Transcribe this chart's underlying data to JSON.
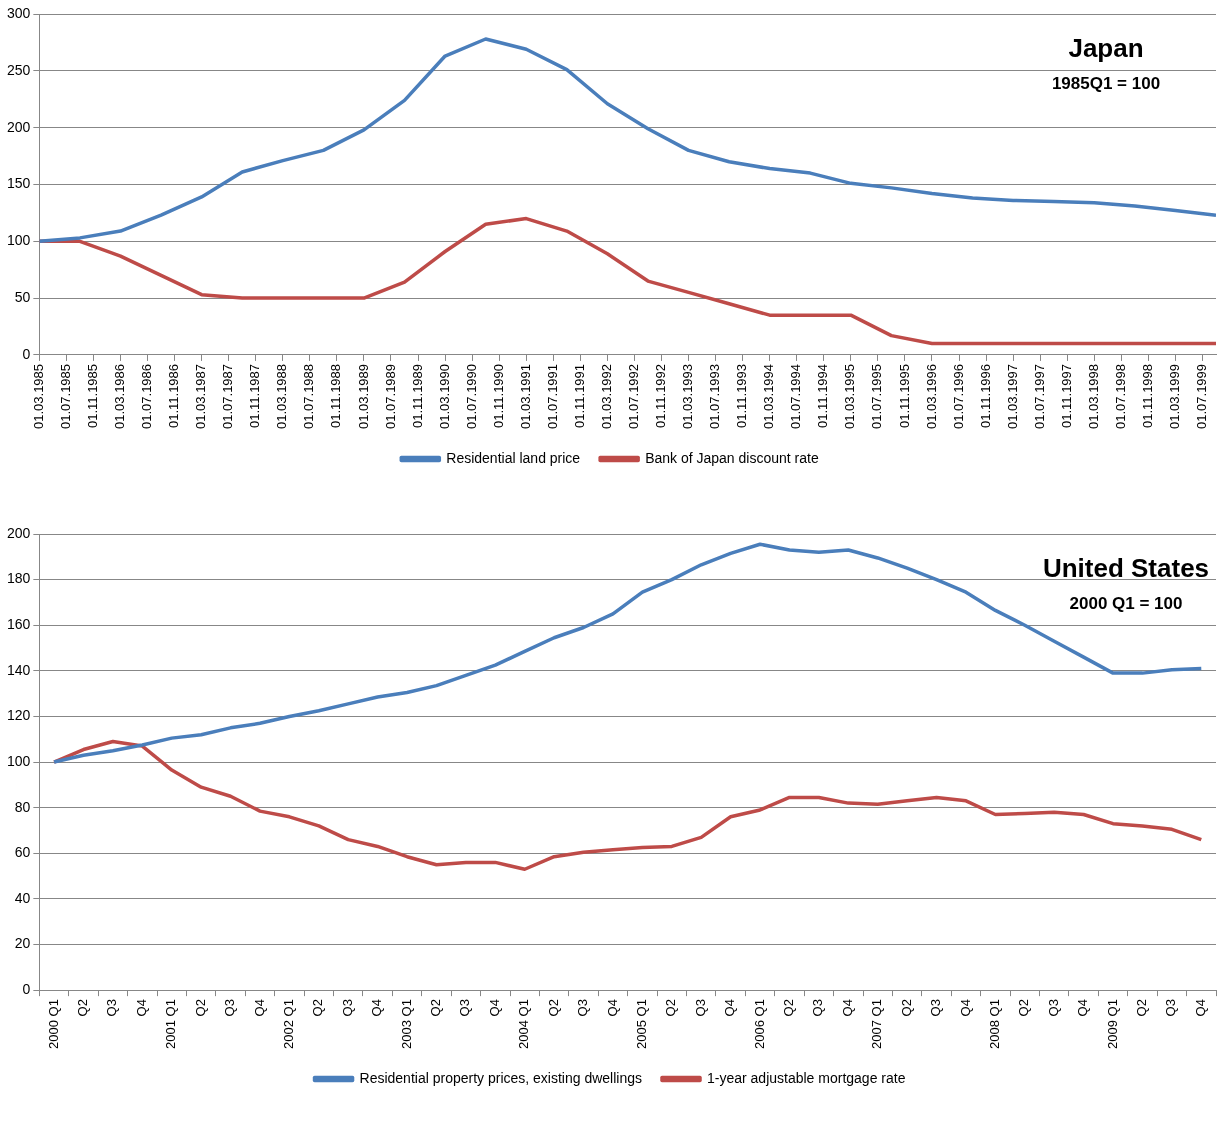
{
  "chart_data": [
    {
      "type": "line",
      "title": "Japan",
      "subtitle": "1985Q1 = 100",
      "x": [
        "1985-03",
        "1985-09",
        "1986-03",
        "1986-09",
        "1987-03",
        "1987-09",
        "1988-03",
        "1988-09",
        "1989-03",
        "1989-09",
        "1990-03",
        "1990-09",
        "1991-03",
        "1991-09",
        "1992-03",
        "1992-09",
        "1993-03",
        "1993-09",
        "1994-03",
        "1994-09",
        "1995-03",
        "1995-09",
        "1996-03",
        "1996-09",
        "1997-03",
        "1997-09",
        "1998-03",
        "1998-09",
        "1999-03",
        "1999-09"
      ],
      "series": [
        {
          "name": "Residential land price",
          "color": "#4a7ebb",
          "values": [
            100,
            103,
            109,
            123,
            139,
            161,
            171,
            180,
            198,
            224,
            263,
            278,
            269,
            251,
            221,
            199,
            180,
            170,
            164,
            160,
            151,
            147,
            142,
            138,
            136,
            135,
            134,
            131,
            127,
            123
          ]
        },
        {
          "name": "Bank of Japan discount rate",
          "color": "#be4b48",
          "values": [
            100,
            100,
            87,
            70,
            53,
            50,
            50,
            50,
            50,
            64,
            91,
            115,
            120,
            109,
            89,
            65,
            55,
            45,
            35,
            35,
            35,
            17,
            10,
            10,
            10,
            10,
            10,
            10,
            10,
            10
          ]
        }
      ],
      "xlim": [
        "1985-03",
        "1999-09"
      ],
      "xticks": [
        {
          "value": "1985-03",
          "label": "01.03.1985"
        },
        {
          "value": "1985-07",
          "label": "01.07.1985"
        },
        {
          "value": "1985-11",
          "label": "01.11.1985"
        },
        {
          "value": "1986-03",
          "label": "01.03.1986"
        },
        {
          "value": "1986-07",
          "label": "01.07.1986"
        },
        {
          "value": "1986-11",
          "label": "01.11.1986"
        },
        {
          "value": "1987-03",
          "label": "01.03.1987"
        },
        {
          "value": "1987-07",
          "label": "01.07.1987"
        },
        {
          "value": "1987-11",
          "label": "01.11.1987"
        },
        {
          "value": "1988-03",
          "label": "01.03.1988"
        },
        {
          "value": "1988-07",
          "label": "01.07.1988"
        },
        {
          "value": "1988-11",
          "label": "01.11.1988"
        },
        {
          "value": "1989-03",
          "label": "01.03.1989"
        },
        {
          "value": "1989-07",
          "label": "01.07.1989"
        },
        {
          "value": "1989-11",
          "label": "01.11.1989"
        },
        {
          "value": "1990-03",
          "label": "01.03.1990"
        },
        {
          "value": "1990-07",
          "label": "01.07.1990"
        },
        {
          "value": "1990-11",
          "label": "01.11.1990"
        },
        {
          "value": "1991-03",
          "label": "01.03.1991"
        },
        {
          "value": "1991-07",
          "label": "01.07.1991"
        },
        {
          "value": "1991-11",
          "label": "01.11.1991"
        },
        {
          "value": "1992-03",
          "label": "01.03.1992"
        },
        {
          "value": "1992-07",
          "label": "01.07.1992"
        },
        {
          "value": "1992-11",
          "label": "01.11.1992"
        },
        {
          "value": "1993-03",
          "label": "01.03.1993"
        },
        {
          "value": "1993-07",
          "label": "01.07.1993"
        },
        {
          "value": "1993-11",
          "label": "01.11.1993"
        },
        {
          "value": "1994-03",
          "label": "01.03.1994"
        },
        {
          "value": "1994-07",
          "label": "01.07.1994"
        },
        {
          "value": "1994-11",
          "label": "01.11.1994"
        },
        {
          "value": "1995-03",
          "label": "01.03.1995"
        },
        {
          "value": "1995-07",
          "label": "01.07.1995"
        },
        {
          "value": "1995-11",
          "label": "01.11.1995"
        },
        {
          "value": "1996-03",
          "label": "01.03.1996"
        },
        {
          "value": "1996-07",
          "label": "01.07.1996"
        },
        {
          "value": "1996-11",
          "label": "01.11.1996"
        },
        {
          "value": "1997-03",
          "label": "01.03.1997"
        },
        {
          "value": "1997-07",
          "label": "01.07.1997"
        },
        {
          "value": "1997-11",
          "label": "01.11.1997"
        },
        {
          "value": "1998-03",
          "label": "01.03.1998"
        },
        {
          "value": "1998-07",
          "label": "01.07.1998"
        },
        {
          "value": "1998-11",
          "label": "01.11.1998"
        },
        {
          "value": "1999-03",
          "label": "01.03.1999"
        },
        {
          "value": "1999-07",
          "label": "01.07.1999"
        }
      ],
      "ylim": [
        0,
        300
      ],
      "yticks": [
        0,
        50,
        100,
        150,
        200,
        250,
        300
      ],
      "grid": "y",
      "legend": "bottom",
      "marker": "none"
    },
    {
      "type": "line",
      "title": "United States",
      "subtitle": "2000 Q1 = 100",
      "categories": [
        "2000 Q1",
        "Q2",
        "Q3",
        "Q4",
        "2001 Q1",
        "Q2",
        "Q3",
        "Q4",
        "2002 Q1",
        "Q2",
        "Q3",
        "Q4",
        "2003 Q1",
        "Q2",
        "Q3",
        "Q4",
        "2004 Q1",
        "Q2",
        "Q3",
        "Q4",
        "2005 Q1",
        "Q2",
        "Q3",
        "Q4",
        "2006 Q1",
        "Q2",
        "Q3",
        "Q4",
        "2007 Q1",
        "Q2",
        "Q3",
        "Q4",
        "2008 Q1",
        "Q2",
        "Q3",
        "Q4",
        "2009 Q1",
        "Q2",
        "Q3",
        "Q4"
      ],
      "series": [
        {
          "name": "Residential property prices, existing dwellings",
          "color": "#4a7ebb",
          "values": [
            100,
            103,
            105,
            107.5,
            110.5,
            112,
            115,
            117,
            120,
            122.5,
            125.5,
            128.5,
            130.5,
            133.5,
            138,
            142.5,
            148.5,
            154.5,
            159,
            165,
            174.5,
            180,
            186.5,
            191.5,
            195.5,
            193,
            192,
            193,
            189.5,
            185,
            180,
            174.5,
            166.5,
            160,
            153,
            146,
            139,
            139,
            140.5,
            141
          ]
        },
        {
          "name": "1-year adjustable mortgage rate",
          "color": "#be4b48",
          "values": [
            100,
            105.5,
            109,
            107,
            96.5,
            89,
            85,
            78.5,
            76,
            72,
            66,
            63,
            58.5,
            55,
            56,
            56,
            53,
            58.5,
            60.5,
            61.5,
            62.5,
            63,
            67,
            76,
            79,
            84.5,
            84.5,
            82,
            81.5,
            83,
            84.5,
            83,
            77,
            77.5,
            78,
            77,
            73,
            72,
            70.5,
            66
          ]
        }
      ],
      "ylim": [
        0,
        200
      ],
      "yticks": [
        0,
        20,
        40,
        60,
        80,
        100,
        120,
        140,
        160,
        180,
        200
      ],
      "grid": "y",
      "legend": "bottom",
      "marker": "none"
    }
  ]
}
